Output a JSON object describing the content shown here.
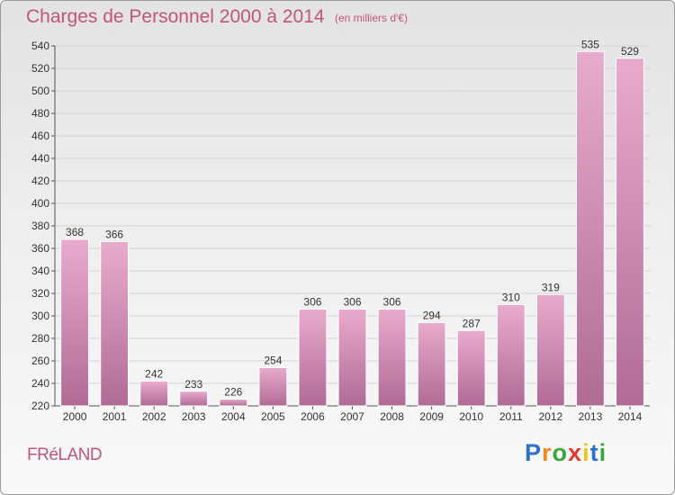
{
  "header": {
    "title": "Charges de Personnel 2000 à 2014",
    "subtitle": "(en milliers d'€)"
  },
  "footer": {
    "commune": "FRéLAND",
    "logo_letters": [
      "P",
      "r",
      "o",
      "x",
      "i",
      "t",
      "i"
    ],
    "logo_colors": [
      "#2f6fcc",
      "#f08a1c",
      "#36a83a",
      "#e23b2e",
      "#f0c41a",
      "#2f6fcc",
      "#36a83a"
    ]
  },
  "colors": {
    "bar_light": "#e9abcd",
    "bar_dark": "#b06b95",
    "text_accent": "#c2547a"
  },
  "chart_data": {
    "type": "bar",
    "title": "Charges de Personnel 2000 à 2014",
    "subtitle": "(en milliers d'€)",
    "categories": [
      "2000",
      "2001",
      "2002",
      "2003",
      "2004",
      "2005",
      "2006",
      "2007",
      "2008",
      "2009",
      "2010",
      "2011",
      "2012",
      "2013",
      "2014"
    ],
    "values": [
      368,
      366,
      242,
      233,
      226,
      254,
      306,
      306,
      306,
      294,
      287,
      310,
      319,
      535,
      529
    ],
    "ylim": [
      220,
      540
    ],
    "yticks": [
      220,
      240,
      260,
      280,
      300,
      320,
      340,
      360,
      380,
      400,
      420,
      440,
      460,
      480,
      500,
      520,
      540
    ],
    "grid": true,
    "xlabel": "",
    "ylabel": ""
  }
}
